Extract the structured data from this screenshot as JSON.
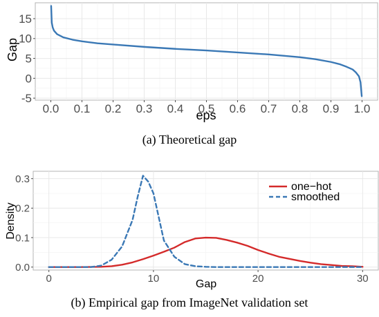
{
  "chart_data": [
    {
      "type": "line",
      "caption": "(a) Theoretical gap",
      "xlabel": "eps",
      "ylabel": "Gap",
      "xlim": [
        -0.05,
        1.05
      ],
      "ylim": [
        -5.5,
        19
      ],
      "xticks": [
        0.0,
        0.1,
        0.2,
        0.3,
        0.4,
        0.5,
        0.6,
        0.7,
        0.8,
        0.9,
        1.0
      ],
      "xtick_labels": [
        "0.0",
        "0.1",
        "0.2",
        "0.3",
        "0.4",
        "0.5",
        "0.6",
        "0.7",
        "0.8",
        "0.9",
        "1.0"
      ],
      "yticks": [
        -5,
        0,
        5,
        10,
        15
      ],
      "ytick_labels": [
        "-5",
        "0",
        "5",
        "10",
        "15"
      ],
      "grid": true,
      "color": "#3a78b5",
      "series": [
        {
          "x": [
            0.001,
            0.003,
            0.006,
            0.01,
            0.02,
            0.04,
            0.07,
            0.1,
            0.15,
            0.2,
            0.3,
            0.4,
            0.5,
            0.6,
            0.7,
            0.8,
            0.85,
            0.9,
            0.93,
            0.95,
            0.97,
            0.98,
            0.99,
            0.995,
            0.999
          ],
          "y": [
            18.2,
            14.0,
            12.8,
            12.0,
            11.1,
            10.3,
            9.7,
            9.3,
            8.8,
            8.5,
            7.9,
            7.4,
            7.0,
            6.5,
            6.0,
            5.3,
            4.8,
            4.1,
            3.5,
            2.9,
            2.2,
            1.5,
            0.5,
            -1.0,
            -4.5
          ]
        }
      ]
    },
    {
      "type": "line",
      "caption": "(b) Empirical gap from ImageNet validation set",
      "xlabel": "Gap",
      "ylabel": "Density",
      "xlim": [
        -1.5,
        31.5
      ],
      "ylim": [
        -0.01,
        0.325
      ],
      "xticks": [
        0,
        10,
        20,
        30
      ],
      "xtick_labels": [
        "0",
        "10",
        "20",
        "30"
      ],
      "yticks": [
        0.0,
        0.1,
        0.2,
        0.3
      ],
      "ytick_labels": [
        "0.0",
        "0.1",
        "0.2",
        "0.3"
      ],
      "grid": true,
      "legend_position": "top-right",
      "series": [
        {
          "name": "one−hot",
          "color": "#d42a2a",
          "dash": "solid",
          "x": [
            0,
            3,
            5,
            6,
            7,
            8,
            9,
            10,
            11,
            12,
            13,
            14,
            15,
            16,
            17,
            18,
            19,
            20,
            21,
            22,
            23,
            24,
            25,
            26,
            27,
            28,
            29,
            30
          ],
          "y": [
            0.0,
            0.0,
            0.001,
            0.003,
            0.008,
            0.016,
            0.027,
            0.039,
            0.052,
            0.066,
            0.085,
            0.097,
            0.1,
            0.099,
            0.092,
            0.083,
            0.072,
            0.058,
            0.046,
            0.035,
            0.028,
            0.021,
            0.015,
            0.01,
            0.007,
            0.004,
            0.003,
            0.001
          ]
        },
        {
          "name": "smoothed",
          "color": "#3a78b5",
          "dash": "dashed",
          "x": [
            0,
            4,
            5,
            6,
            7,
            8,
            8.5,
            9,
            9.5,
            10,
            10.5,
            11,
            12,
            13,
            14,
            15,
            16,
            18,
            20,
            25,
            30
          ],
          "y": [
            0.0,
            0.0,
            0.005,
            0.025,
            0.07,
            0.16,
            0.24,
            0.31,
            0.29,
            0.25,
            0.17,
            0.09,
            0.035,
            0.01,
            0.003,
            0.001,
            0.0,
            0.0,
            0.0,
            0.0,
            0.0
          ]
        }
      ]
    }
  ]
}
